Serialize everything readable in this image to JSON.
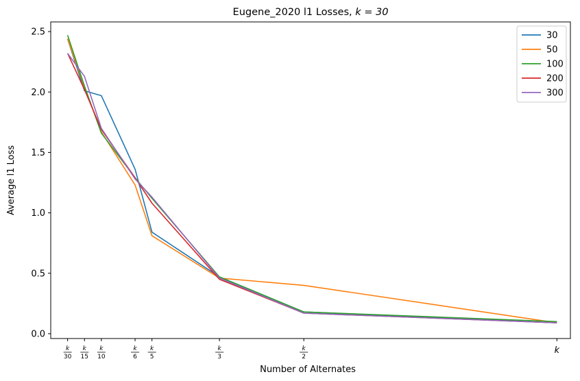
{
  "chart_data": {
    "type": "line",
    "title": "Eugene_2020 l1 Losses, ",
    "title_math": "k = 30",
    "xlabel": "Number of Alternates",
    "ylabel": "Average l1 Loss",
    "xlim": [
      0,
      30.8
    ],
    "ylim": [
      -0.04,
      2.58
    ],
    "x": [
      1,
      2,
      3,
      5,
      6,
      10,
      15,
      30
    ],
    "xtick_labels": [
      {
        "num": "k",
        "den": "30"
      },
      {
        "num": "k",
        "den": "15"
      },
      {
        "num": "k",
        "den": "10"
      },
      {
        "num": "k",
        "den": "6"
      },
      {
        "num": "k",
        "den": "5"
      },
      {
        "num": "k",
        "den": "3"
      },
      {
        "num": "k",
        "den": "2"
      },
      {
        "num": "",
        "den": "",
        "plain": "k"
      }
    ],
    "yticks": [
      0.0,
      0.5,
      1.0,
      1.5,
      2.0,
      2.5
    ],
    "ytick_labels": [
      "0.0",
      "0.5",
      "1.0",
      "1.5",
      "2.0",
      "2.5"
    ],
    "grid": false,
    "legend_position": "top-right",
    "series": [
      {
        "name": "30",
        "color": "#1f77b4",
        "values": [
          2.44,
          2.01,
          1.97,
          1.36,
          0.84,
          0.47,
          0.18,
          0.09
        ]
      },
      {
        "name": "50",
        "color": "#ff7f0e",
        "values": [
          2.44,
          2.04,
          1.67,
          1.23,
          0.81,
          0.46,
          0.4,
          0.09
        ]
      },
      {
        "name": "100",
        "color": "#2ca02c",
        "values": [
          2.47,
          2.05,
          1.66,
          1.29,
          1.12,
          0.47,
          0.18,
          0.1
        ]
      },
      {
        "name": "200",
        "color": "#d62728",
        "values": [
          2.32,
          2.02,
          1.69,
          1.29,
          1.08,
          0.45,
          0.17,
          0.09
        ]
      },
      {
        "name": "300",
        "color": "#9467bd",
        "values": [
          2.32,
          2.13,
          1.7,
          1.28,
          1.13,
          0.46,
          0.17,
          0.09
        ]
      }
    ]
  }
}
